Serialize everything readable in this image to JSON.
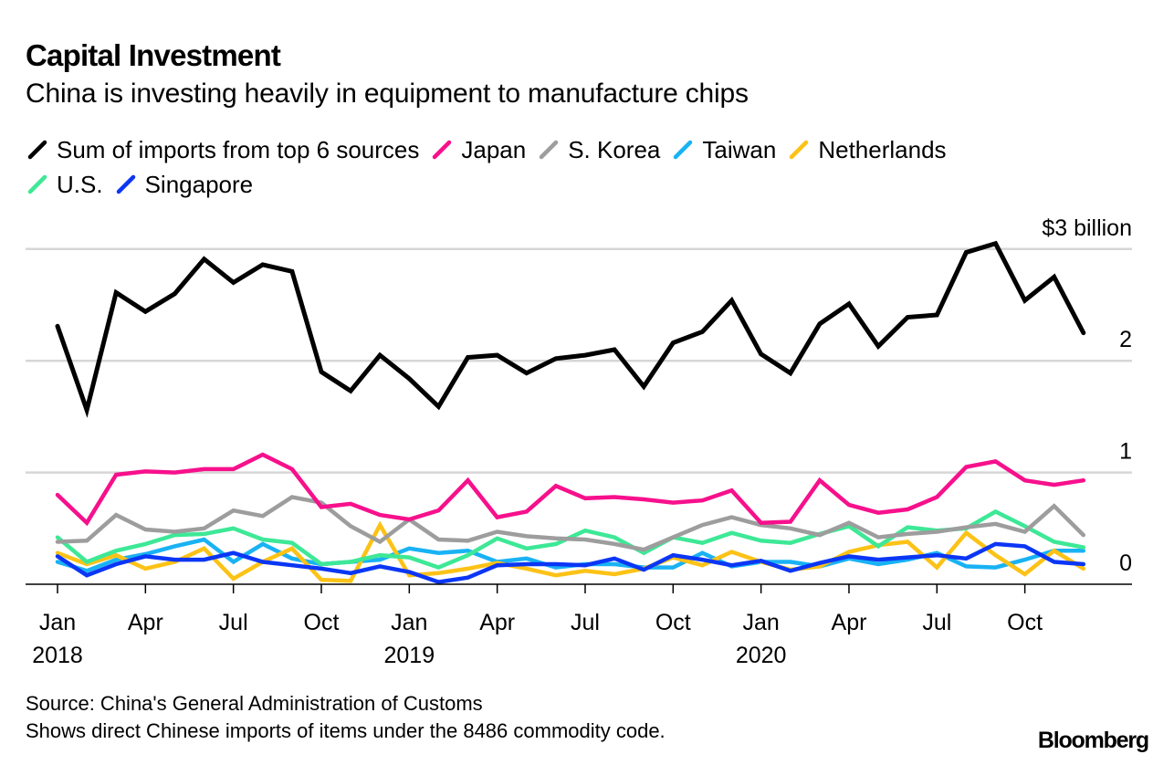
{
  "header": {
    "title": "Capital Investment",
    "subtitle": "China is investing heavily in equipment to manufacture chips"
  },
  "footer": {
    "source": "Source: China's General Administration of Customs",
    "note": "Shows direct Chinese imports of items under the 8486 commodity code.",
    "brand": "Bloomberg"
  },
  "chart_data": {
    "type": "line",
    "title": "Capital Investment",
    "subtitle": "China is investing heavily in equipment to manufacture chips",
    "xlabel": "",
    "ylabel": "",
    "y_unit_label": "$3 billion",
    "ylim": [
      0,
      3
    ],
    "yticks": [
      {
        "value": 3,
        "label": "$3 billion"
      },
      {
        "value": 2,
        "label": "2"
      },
      {
        "value": 1,
        "label": "1"
      },
      {
        "value": 0,
        "label": "0"
      }
    ],
    "grid": true,
    "legend_position": "top-left",
    "x": [
      "2018-01",
      "2018-02",
      "2018-03",
      "2018-04",
      "2018-05",
      "2018-06",
      "2018-07",
      "2018-08",
      "2018-09",
      "2018-10",
      "2018-11",
      "2018-12",
      "2019-01",
      "2019-02",
      "2019-03",
      "2019-04",
      "2019-05",
      "2019-06",
      "2019-07",
      "2019-08",
      "2019-09",
      "2019-10",
      "2019-11",
      "2019-12",
      "2020-01",
      "2020-02",
      "2020-03",
      "2020-04",
      "2020-05",
      "2020-06",
      "2020-07",
      "2020-08",
      "2020-09",
      "2020-10",
      "2020-11",
      "2020-12"
    ],
    "xticks": [
      {
        "index": 0,
        "label": "Jan",
        "year": "2018"
      },
      {
        "index": 3,
        "label": "Apr",
        "year": ""
      },
      {
        "index": 6,
        "label": "Jul",
        "year": ""
      },
      {
        "index": 9,
        "label": "Oct",
        "year": ""
      },
      {
        "index": 12,
        "label": "Jan",
        "year": "2019"
      },
      {
        "index": 15,
        "label": "Apr",
        "year": ""
      },
      {
        "index": 18,
        "label": "Jul",
        "year": ""
      },
      {
        "index": 21,
        "label": "Oct",
        "year": ""
      },
      {
        "index": 24,
        "label": "Jan",
        "year": "2020"
      },
      {
        "index": 27,
        "label": "Apr",
        "year": ""
      },
      {
        "index": 30,
        "label": "Jul",
        "year": ""
      },
      {
        "index": 33,
        "label": "Oct",
        "year": ""
      }
    ],
    "series": [
      {
        "name": "Sum of imports from top 6 sources",
        "color": "#000000",
        "values": [
          2.31,
          1.56,
          2.61,
          2.44,
          2.6,
          2.91,
          2.7,
          2.86,
          2.8,
          1.9,
          1.73,
          2.05,
          1.84,
          1.59,
          2.03,
          2.05,
          1.89,
          2.02,
          2.05,
          2.1,
          1.77,
          2.16,
          2.26,
          2.54,
          2.06,
          1.89,
          2.33,
          2.51,
          2.13,
          2.39,
          2.41,
          2.97,
          3.05,
          2.54,
          2.75,
          2.25
        ]
      },
      {
        "name": "Japan",
        "color": "#f7108c",
        "values": [
          0.8,
          0.55,
          0.98,
          1.01,
          1.0,
          1.03,
          1.03,
          1.16,
          1.03,
          0.69,
          0.72,
          0.62,
          0.58,
          0.66,
          0.93,
          0.6,
          0.65,
          0.88,
          0.77,
          0.78,
          0.76,
          0.73,
          0.75,
          0.84,
          0.55,
          0.56,
          0.93,
          0.71,
          0.64,
          0.67,
          0.78,
          1.05,
          1.1,
          0.93,
          0.89,
          0.93
        ]
      },
      {
        "name": "S. Korea",
        "color": "#9d9d9d",
        "values": [
          0.38,
          0.39,
          0.62,
          0.49,
          0.47,
          0.5,
          0.66,
          0.61,
          0.78,
          0.73,
          0.52,
          0.38,
          0.58,
          0.4,
          0.39,
          0.47,
          0.43,
          0.41,
          0.4,
          0.36,
          0.31,
          0.42,
          0.53,
          0.6,
          0.53,
          0.5,
          0.44,
          0.55,
          0.42,
          0.45,
          0.47,
          0.51,
          0.54,
          0.47,
          0.7,
          0.44
        ]
      },
      {
        "name": "Taiwan",
        "color": "#19b2f4",
        "values": [
          0.2,
          0.12,
          0.22,
          0.27,
          0.34,
          0.4,
          0.2,
          0.36,
          0.23,
          0.18,
          0.2,
          0.22,
          0.32,
          0.28,
          0.3,
          0.2,
          0.23,
          0.15,
          0.18,
          0.18,
          0.15,
          0.15,
          0.28,
          0.16,
          0.2,
          0.2,
          0.16,
          0.23,
          0.18,
          0.22,
          0.28,
          0.16,
          0.15,
          0.22,
          0.3,
          0.3
        ]
      },
      {
        "name": "Netherlands",
        "color": "#fcc216",
        "values": [
          0.28,
          0.18,
          0.26,
          0.14,
          0.2,
          0.32,
          0.05,
          0.2,
          0.32,
          0.04,
          0.03,
          0.53,
          0.08,
          0.1,
          0.14,
          0.19,
          0.14,
          0.08,
          0.12,
          0.09,
          0.14,
          0.24,
          0.17,
          0.29,
          0.2,
          0.13,
          0.16,
          0.29,
          0.35,
          0.38,
          0.15,
          0.46,
          0.26,
          0.09,
          0.3,
          0.14
        ]
      },
      {
        "name": "U.S.",
        "color": "#3de896",
        "values": [
          0.42,
          0.2,
          0.3,
          0.36,
          0.44,
          0.45,
          0.5,
          0.4,
          0.37,
          0.18,
          0.2,
          0.26,
          0.24,
          0.15,
          0.26,
          0.41,
          0.32,
          0.36,
          0.48,
          0.42,
          0.28,
          0.42,
          0.37,
          0.46,
          0.39,
          0.37,
          0.45,
          0.52,
          0.34,
          0.51,
          0.48,
          0.5,
          0.65,
          0.52,
          0.38,
          0.33
        ]
      },
      {
        "name": "Singapore",
        "color": "#0b36f5",
        "values": [
          0.25,
          0.08,
          0.18,
          0.25,
          0.22,
          0.22,
          0.28,
          0.2,
          0.17,
          0.14,
          0.1,
          0.16,
          0.11,
          0.02,
          0.06,
          0.17,
          0.18,
          0.18,
          0.17,
          0.23,
          0.13,
          0.26,
          0.22,
          0.17,
          0.21,
          0.12,
          0.19,
          0.25,
          0.22,
          0.24,
          0.26,
          0.23,
          0.36,
          0.34,
          0.2,
          0.18
        ]
      }
    ],
    "draw_order": [
      "Taiwan",
      "Netherlands",
      "U.S.",
      "S. Korea",
      "Japan",
      "Singapore",
      "Sum of imports from top 6 sources"
    ],
    "legend_rows": [
      [
        "Sum of imports from top 6 sources",
        "Japan",
        "S. Korea",
        "Taiwan",
        "Netherlands"
      ],
      [
        "U.S.",
        "Singapore"
      ]
    ]
  }
}
